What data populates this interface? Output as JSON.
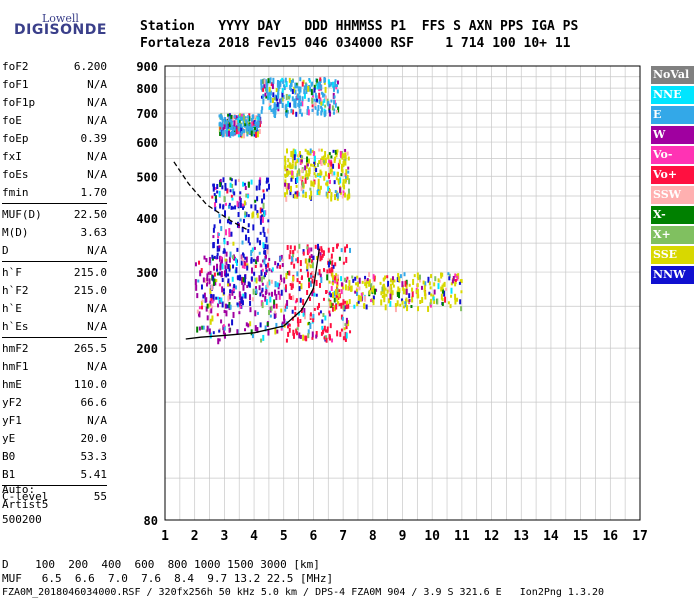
{
  "logo": {
    "line1": "Lowell",
    "line2": "DIGISONDE"
  },
  "header": {
    "line1": "Station   YYYY DAY   DDD HHMMSS P1  FFS S AXN PPS IGA PS",
    "line2": "Fortaleza 2018 Fev15 046 034000 RSF    1 714 100 10+ 11"
  },
  "params": {
    "group1": [
      {
        "k": "foF2",
        "v": "6.200"
      },
      {
        "k": "foF1",
        "v": "N/A"
      },
      {
        "k": "foF1p",
        "v": "N/A"
      },
      {
        "k": "foE",
        "v": "N/A"
      },
      {
        "k": "foEp",
        "v": "0.39"
      },
      {
        "k": "fxI",
        "v": "N/A"
      },
      {
        "k": "foEs",
        "v": "N/A"
      },
      {
        "k": "fmin",
        "v": "1.70"
      }
    ],
    "group2": [
      {
        "k": "MUF(D)",
        "v": "22.50"
      },
      {
        "k": "M(D)",
        "v": "3.63"
      },
      {
        "k": "D",
        "v": "N/A"
      }
    ],
    "group3": [
      {
        "k": "h`F",
        "v": "215.0"
      },
      {
        "k": "h`F2",
        "v": "215.0"
      },
      {
        "k": "h`E",
        "v": "N/A"
      },
      {
        "k": "h`Es",
        "v": "N/A"
      }
    ],
    "group4": [
      {
        "k": "hmF2",
        "v": "265.5"
      },
      {
        "k": "hmF1",
        "v": "N/A"
      },
      {
        "k": "hmE",
        "v": "110.0"
      },
      {
        "k": "yF2",
        "v": "66.6"
      },
      {
        "k": "yF1",
        "v": "N/A"
      },
      {
        "k": "yE",
        "v": "20.0"
      },
      {
        "k": "B0",
        "v": "53.3"
      },
      {
        "k": "B1",
        "v": "5.41"
      }
    ],
    "group5": [
      {
        "k": "C-level",
        "v": "55"
      }
    ]
  },
  "auto": {
    "line1": "Auto:",
    "line2": "Artist5",
    "line3": "500200"
  },
  "legend": [
    {
      "label": "NoVal",
      "color": "#808080"
    },
    {
      "label": "NNE",
      "color": "#00e5ff"
    },
    {
      "label": "E",
      "color": "#33a8e8"
    },
    {
      "label": "W",
      "color": "#a000a0"
    },
    {
      "label": "Vo-",
      "color": "#ff33b4"
    },
    {
      "label": "Vo+",
      "color": "#ff1040"
    },
    {
      "label": "SSW",
      "color": "#ffb0b0"
    },
    {
      "label": "X-",
      "color": "#008000"
    },
    {
      "label": "X+",
      "color": "#80c060"
    },
    {
      "label": "SSE",
      "color": "#d8d800"
    },
    {
      "label": "NNW",
      "color": "#1010d0"
    }
  ],
  "footer": {
    "line1": "D    100  200  400  600  800 1000 1500 3000 [km]",
    "line2": "MUF   6.5  6.6  7.0  7.6  8.4  9.7 13.2 22.5 [MHz]",
    "line3": "FZA0M_2018046034000.RSF / 320fx256h 50 kHz 5.0 km / DPS-4 FZA0M 904 / 3.9 S 321.6 E   Ion2Png 1.3.20"
  },
  "chart_data": {
    "type": "scatter",
    "title": "",
    "xlabel": "",
    "ylabel": "",
    "xlim": [
      1,
      17
    ],
    "ylim": [
      80,
      900
    ],
    "y_scale": "log",
    "x_ticks": [
      1,
      2,
      3,
      4,
      5,
      6,
      7,
      8,
      9,
      10,
      11,
      12,
      13,
      14,
      15,
      16,
      17
    ],
    "y_ticks": [
      80,
      200,
      300,
      400,
      500,
      600,
      700,
      800,
      900
    ],
    "grid": true,
    "legend_placement": "right",
    "series": [
      {
        "name": "O-trace (solid)",
        "color": "#000000",
        "x": [
          1.7,
          2.2,
          3.0,
          4.0,
          5.0,
          5.6,
          6.0,
          6.2
        ],
        "y": [
          210,
          212,
          214,
          217,
          225,
          245,
          275,
          340
        ]
      },
      {
        "name": "X-trace (dashed)",
        "color": "#000000",
        "x": [
          1.3,
          1.8,
          2.4,
          3.2,
          3.8
        ],
        "y": [
          540,
          480,
          430,
          395,
          375
        ]
      }
    ],
    "clusters": [
      {
        "name": "E",
        "x": [
          2.8,
          4.2
        ],
        "y": [
          630,
          700
        ]
      },
      {
        "name": "E",
        "x": [
          4.2,
          6.8
        ],
        "y": [
          700,
          850
        ]
      },
      {
        "name": "W",
        "x": [
          2.0,
          5.0
        ],
        "y": [
          210,
          330
        ]
      },
      {
        "name": "Vo+",
        "x": [
          5.0,
          7.2
        ],
        "y": [
          210,
          350
        ]
      },
      {
        "name": "SSE",
        "x": [
          5.0,
          7.2
        ],
        "y": [
          450,
          580
        ]
      },
      {
        "name": "NNW",
        "x": [
          2.5,
          4.5
        ],
        "y": [
          250,
          500
        ]
      },
      {
        "name": "SSE",
        "x": [
          6.5,
          11.0
        ],
        "y": [
          250,
          300
        ]
      }
    ]
  }
}
